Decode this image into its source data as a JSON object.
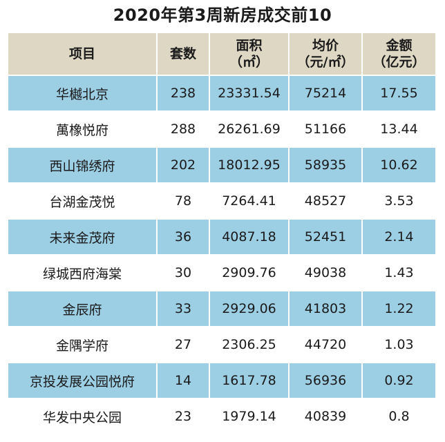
{
  "title": "2020年第3周新房成交前10",
  "headers": {
    "project": "项目",
    "units": "套数",
    "area_line1": "面积",
    "area_line2": "（㎡）",
    "price_line1": "均价",
    "price_line2": "（元/㎡）",
    "amount_line1": "金额",
    "amount_line2": "（亿元）"
  },
  "rows": [
    {
      "project": "华樾北京",
      "units": "238",
      "area": "23331.54",
      "price": "75214",
      "amount": "17.55"
    },
    {
      "project": "萬橡悦府",
      "units": "288",
      "area": "26261.69",
      "price": "51166",
      "amount": "13.44"
    },
    {
      "project": "西山锦绣府",
      "units": "202",
      "area": "18012.95",
      "price": "58935",
      "amount": "10.62"
    },
    {
      "project": "台湖金茂悦",
      "units": "78",
      "area": "7264.41",
      "price": "48527",
      "amount": "3.53"
    },
    {
      "project": "未来金茂府",
      "units": "36",
      "area": "4087.18",
      "price": "52451",
      "amount": "2.14"
    },
    {
      "project": "绿城西府海棠",
      "units": "30",
      "area": "2909.76",
      "price": "49038",
      "amount": "1.43"
    },
    {
      "project": "金辰府",
      "units": "33",
      "area": "2929.06",
      "price": "41803",
      "amount": "1.22"
    },
    {
      "project": "金隅学府",
      "units": "27",
      "area": "2306.25",
      "price": "44720",
      "amount": "1.03"
    },
    {
      "project": "京投发展公园悦府",
      "units": "14",
      "area": "1617.78",
      "price": "56936",
      "amount": "0.92"
    },
    {
      "project": "华发中央公园",
      "units": "23",
      "area": "1979.14",
      "price": "40839",
      "amount": "0.8"
    }
  ],
  "colors": {
    "header_bg": "#ddd7c4",
    "row_alt_bg": "#9ccee4",
    "row_bg": "#ffffff"
  }
}
